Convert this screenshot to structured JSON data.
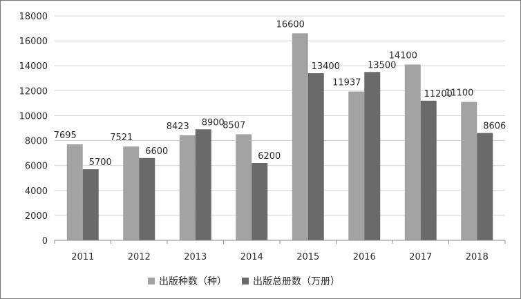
{
  "chart_data": {
    "type": "bar",
    "categories": [
      "2011",
      "2012",
      "2013",
      "2014",
      "2015",
      "2016",
      "2017",
      "2018"
    ],
    "series": [
      {
        "name": "出版种数（种）",
        "color": "#a3a3a3",
        "values": [
          7695,
          7521,
          8423,
          8507,
          16600,
          11937,
          14100,
          11100
        ]
      },
      {
        "name": "出版总册数（万册）",
        "color": "#6a6a6a",
        "values": [
          5700,
          6600,
          8900,
          6200,
          13400,
          13500,
          11200,
          8606
        ]
      }
    ],
    "ylim": [
      0,
      18000
    ],
    "yticks": [
      "0",
      "2000",
      "4000",
      "6000",
      "8000",
      "10000",
      "12000",
      "14000",
      "16000",
      "18000"
    ],
    "grid": true,
    "legend_position": "bottom",
    "title": "",
    "xlabel": "",
    "ylabel": ""
  }
}
